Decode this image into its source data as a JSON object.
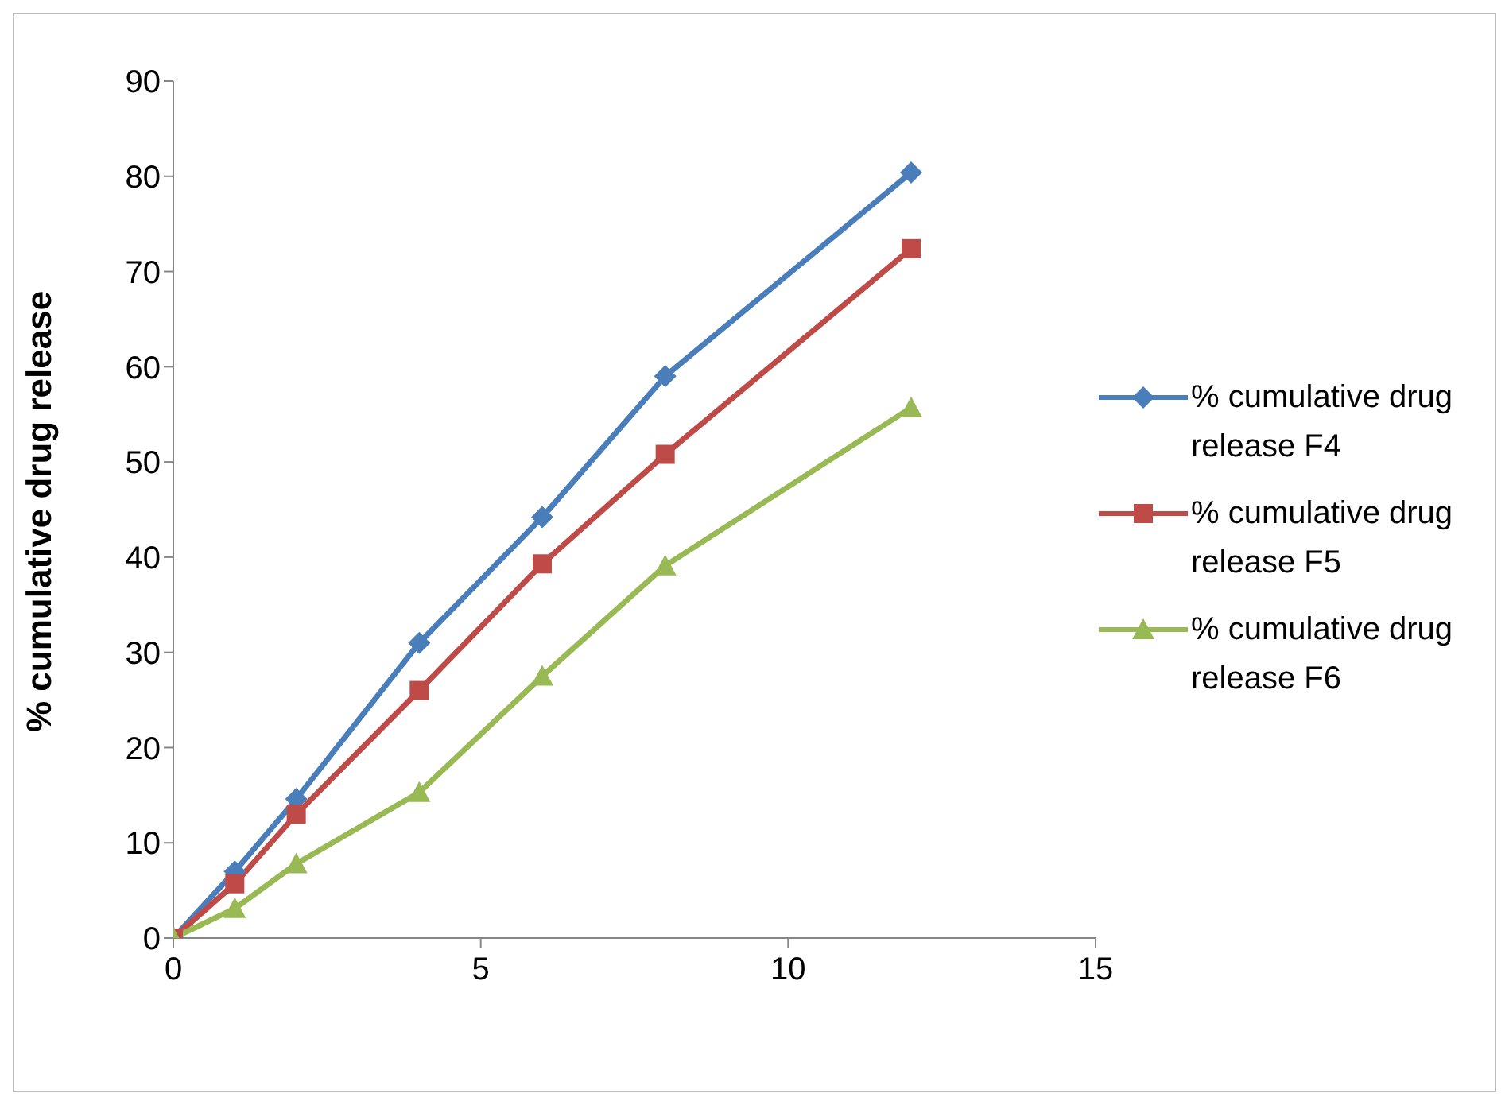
{
  "chart_data": {
    "type": "line",
    "ylabel": "% cumulative drug release",
    "xlim": [
      0,
      15
    ],
    "xticks": [
      0,
      5,
      10,
      15
    ],
    "ylim": [
      0,
      90
    ],
    "yticks": [
      0,
      10,
      20,
      30,
      40,
      50,
      60,
      70,
      80,
      90
    ],
    "grid": false,
    "legend": "right",
    "line_style": "solid",
    "series": [
      {
        "name": "% cumulative drug release F4",
        "color": "#4a7ebb",
        "marker": "diamond",
        "x": [
          0,
          1,
          2,
          4,
          6,
          8,
          12
        ],
        "values": [
          0,
          7,
          14.6,
          31,
          44.2,
          59,
          80.4
        ]
      },
      {
        "name": "% cumulative drug release F5",
        "color": "#be4b48",
        "marker": "square",
        "x": [
          0,
          1,
          2,
          4,
          6,
          8,
          12
        ],
        "values": [
          0,
          5.7,
          13,
          26,
          39.3,
          50.8,
          72.4
        ]
      },
      {
        "name": "% cumulative drug release F6",
        "color": "#98b954",
        "marker": "triangle",
        "x": [
          0,
          1,
          2,
          4,
          6,
          8,
          12
        ],
        "values": [
          0,
          3.1,
          7.8,
          15.3,
          27.5,
          39.1,
          55.7
        ]
      }
    ]
  }
}
